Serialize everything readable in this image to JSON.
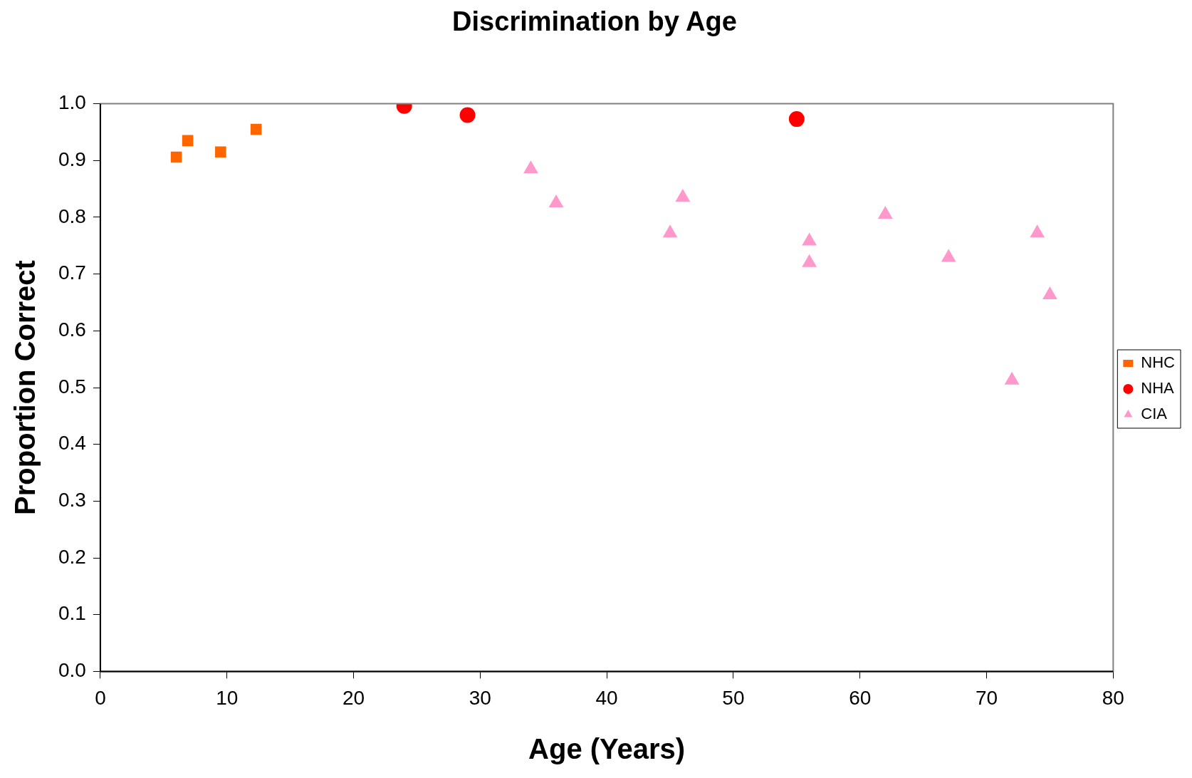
{
  "chart_data": {
    "type": "scatter",
    "title": "Discrimination by Age",
    "xlabel": "Age (Years)",
    "ylabel": "Proportion Correct",
    "xlim": [
      0,
      80
    ],
    "xticks": [
      0,
      10,
      20,
      30,
      40,
      50,
      60,
      70,
      80
    ],
    "ylim": [
      0,
      1
    ],
    "yticks": [
      {
        "value": 0,
        "label": "0.0"
      },
      {
        "value": 0.1,
        "label": "0.1"
      },
      {
        "value": 0.2,
        "label": "0.2"
      },
      {
        "value": 0.3,
        "label": "0.3"
      },
      {
        "value": 0.4,
        "label": "0.4"
      },
      {
        "value": 0.5,
        "label": "0.5"
      },
      {
        "value": 0.6,
        "label": "0.6"
      },
      {
        "value": 0.7,
        "label": "0.7"
      },
      {
        "value": 0.8,
        "label": "0.8"
      },
      {
        "value": 0.9,
        "label": "0.9"
      },
      {
        "value": 1,
        "label": "1.0"
      }
    ],
    "grid": false,
    "legend": "right",
    "series": [
      {
        "name": "NHC",
        "color": "#ff6600",
        "marker": "square",
        "x": [
          6.0,
          6.9,
          9.5,
          12.3
        ],
        "values": [
          0.906,
          0.935,
          0.915,
          0.955
        ]
      },
      {
        "name": "NHA",
        "color": "#ff0000",
        "marker": "circle",
        "x": [
          24,
          29,
          55
        ],
        "values": [
          0.996,
          0.98,
          0.973
        ]
      },
      {
        "name": "CIA",
        "color": "#ff99cc",
        "marker": "triangle",
        "x": [
          34,
          36,
          45,
          46,
          56,
          56,
          62,
          67,
          72,
          74,
          75
        ],
        "values": [
          0.885,
          0.825,
          0.772,
          0.835,
          0.758,
          0.72,
          0.805,
          0.729,
          0.513,
          0.772,
          0.663
        ]
      }
    ]
  }
}
